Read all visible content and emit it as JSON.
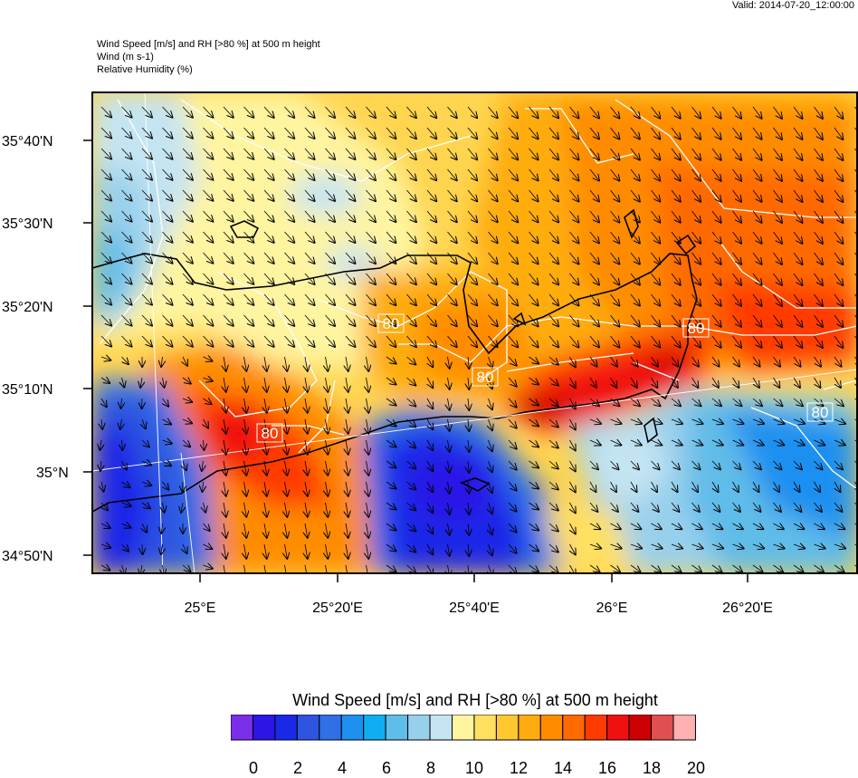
{
  "valid_time": "Valid: 2014-07-20_12:00:00",
  "title_lines": [
    "Wind Speed [m/s] and RH [>80 %] at 500 m height",
    "Wind   (m s-1)",
    "Relative Humidity   (%)"
  ],
  "lat_labels": [
    "35°40'N",
    "35°30'N",
    "35°20'N",
    "35°10'N",
    "35°N",
    "34°50'N"
  ],
  "lon_labels": [
    "25°E",
    "25°20'E",
    "25°40'E",
    "26°E",
    "26°20'E"
  ],
  "contour_labels": [
    "80",
    "80",
    "80",
    "80",
    "80"
  ],
  "colorbar": {
    "title": "Wind Speed [m/s] and RH [>80 %] at 500 m height",
    "labels": [
      "0",
      "2",
      "4",
      "6",
      "8",
      "10",
      "12",
      "14",
      "16",
      "18",
      "20"
    ],
    "colors": [
      "#7b2ee8",
      "#2b16e6",
      "#1a28e8",
      "#2f55e0",
      "#2f6fe8",
      "#1e90f0",
      "#10aef0",
      "#60bce8",
      "#98d0ec",
      "#c4e4f2",
      "#fff4a0",
      "#ffe060",
      "#ffc830",
      "#ffac10",
      "#ff8c00",
      "#ff6a00",
      "#ff3a00",
      "#f01010",
      "#cc0000",
      "#e05050",
      "#ffb0b0"
    ]
  },
  "colors": {
    "contour": "#ffffff",
    "coastline": "#000000",
    "vectors": "#000000"
  }
}
